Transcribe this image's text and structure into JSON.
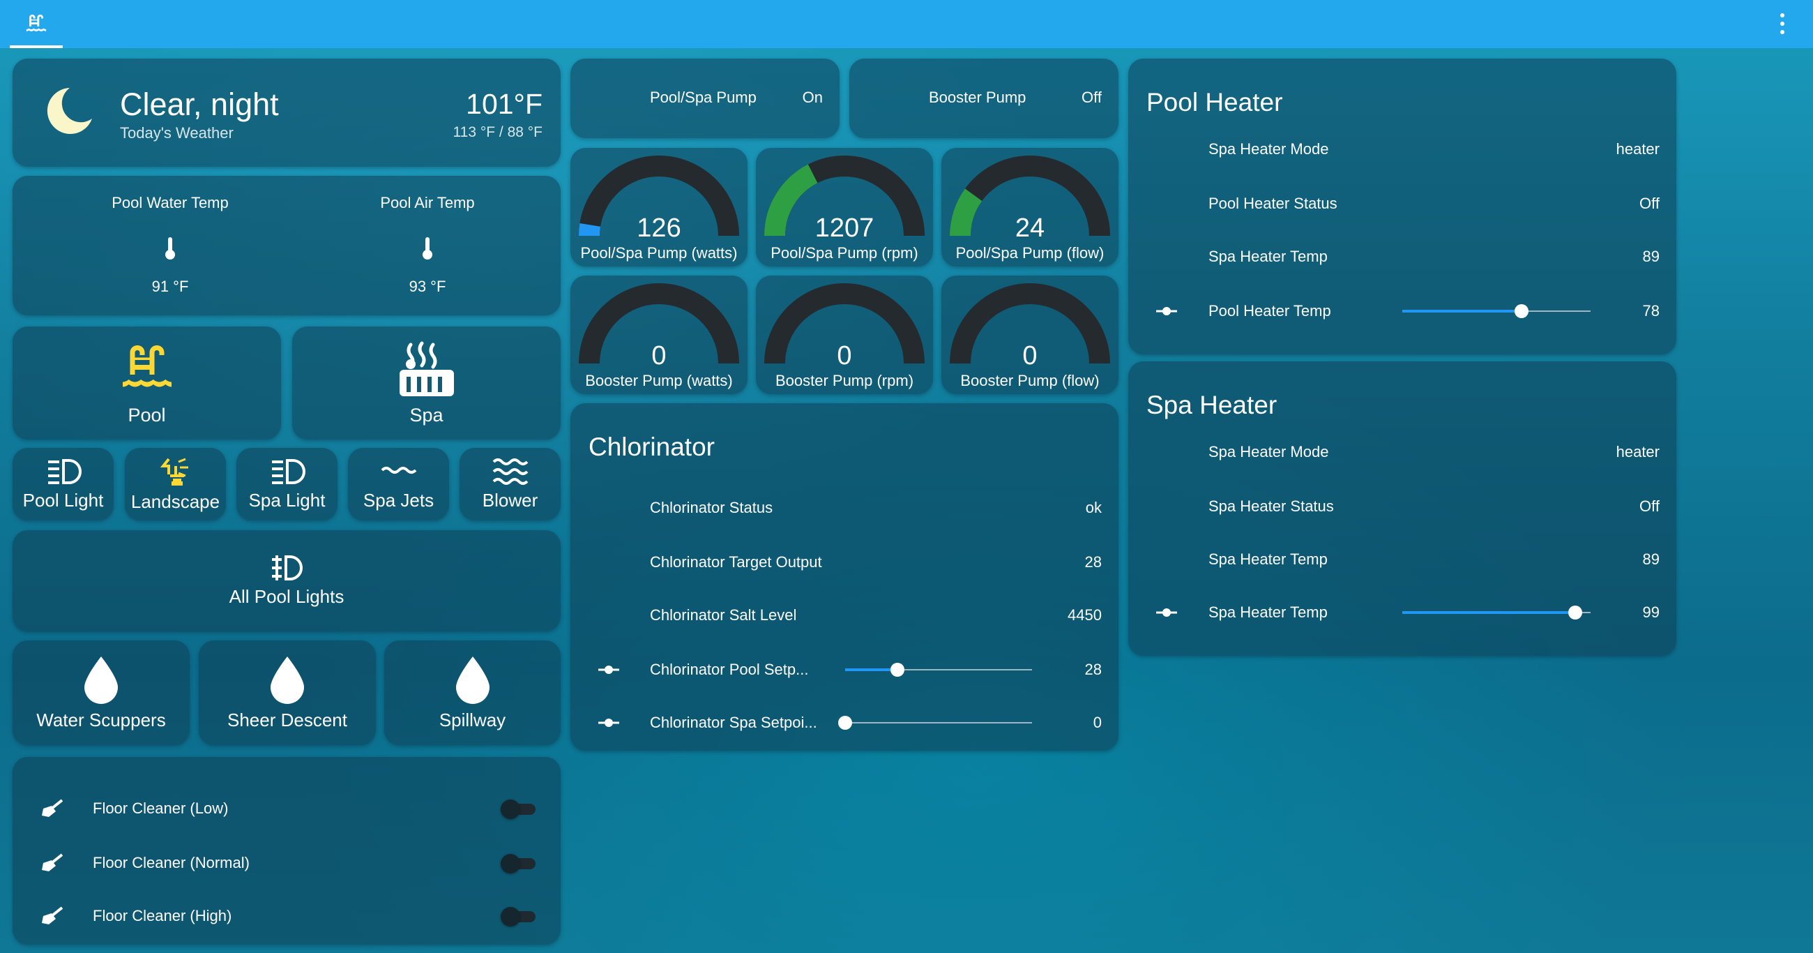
{
  "weather": {
    "condition": "Clear, night",
    "subtitle": "Today's Weather",
    "temperature": "101°F",
    "range": "113 °F / 88 °F",
    "icon": "moon-icon"
  },
  "temps": [
    {
      "label": "Pool Water Temp",
      "value": "91 °F"
    },
    {
      "label": "Pool Air Temp",
      "value": "93 °F"
    }
  ],
  "modes": {
    "pool": "Pool",
    "spa": "Spa",
    "pool_active_color": "#fdd835"
  },
  "lights": [
    {
      "label": "Pool Light",
      "icon": "light-icon",
      "active": false
    },
    {
      "label": "Landscape",
      "icon": "landscape-light-icon",
      "active": true
    },
    {
      "label": "Spa Light",
      "icon": "light-icon",
      "active": false
    },
    {
      "label": "Spa Jets",
      "icon": "jets-icon",
      "active": false
    },
    {
      "label": "Blower",
      "icon": "waves-icon",
      "active": false
    }
  ],
  "all_lights": "All Pool Lights",
  "features": [
    {
      "label": "Water Scuppers"
    },
    {
      "label": "Sheer Descent"
    },
    {
      "label": "Spillway"
    }
  ],
  "cleaners": [
    {
      "label": "Floor Cleaner (Low)",
      "on": false
    },
    {
      "label": "Floor Cleaner (Normal)",
      "on": false
    },
    {
      "label": "Floor Cleaner (High)",
      "on": false
    }
  ],
  "pumps": [
    {
      "name": "Pool/Spa Pump",
      "state": "On"
    },
    {
      "name": "Booster Pump",
      "state": "Off"
    }
  ],
  "gauges": [
    {
      "value": "126",
      "label": "Pool/Spa Pump (watts)",
      "fraction": 0.05,
      "color": "#2196f3"
    },
    {
      "value": "1207",
      "label": "Pool/Spa Pump (rpm)",
      "fraction": 0.35,
      "color": "#2ea043"
    },
    {
      "value": "24",
      "label": "Pool/Spa Pump (flow)",
      "fraction": 0.2,
      "color": "#2ea043"
    },
    {
      "value": "0",
      "label": "Booster Pump (watts)",
      "fraction": 0,
      "color": "#2196f3"
    },
    {
      "value": "0",
      "label": "Booster Pump (rpm)",
      "fraction": 0,
      "color": "#2196f3"
    },
    {
      "value": "0",
      "label": "Booster Pump (flow)",
      "fraction": 0,
      "color": "#2196f3"
    }
  ],
  "chlorinator": {
    "title": "Chlorinator",
    "rows": [
      {
        "name": "Chlorinator Status",
        "value": "ok"
      },
      {
        "name": "Chlorinator Target Output",
        "value": "28"
      },
      {
        "name": "Chlorinator Salt Level",
        "value": "4450"
      }
    ],
    "sliders": [
      {
        "name": "Chlorinator Pool Setp...",
        "value": "28",
        "fraction": 0.28
      },
      {
        "name": "Chlorinator Spa Setpoi...",
        "value": "0",
        "fraction": 0.0
      }
    ]
  },
  "pool_heater": {
    "title": "Pool Heater",
    "rows": [
      {
        "name": "Spa Heater Mode",
        "value": "heater"
      },
      {
        "name": "Pool Heater Status",
        "value": "Off"
      },
      {
        "name": "Spa Heater Temp",
        "value": "89"
      }
    ],
    "slider": {
      "name": "Pool Heater Temp",
      "value": "78",
      "fraction": 0.635
    }
  },
  "spa_heater": {
    "title": "Spa Heater",
    "rows": [
      {
        "name": "Spa Heater Mode",
        "value": "heater"
      },
      {
        "name": "Spa Heater Status",
        "value": "Off"
      },
      {
        "name": "Spa Heater Temp",
        "value": "89"
      }
    ],
    "slider": {
      "name": "Spa Heater Temp",
      "value": "99",
      "fraction": 0.92
    }
  }
}
